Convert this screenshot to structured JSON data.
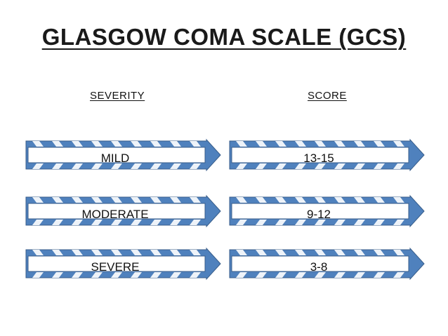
{
  "title": "GLASGOW COMA SCALE (GCS)",
  "headers": {
    "severity": "SEVERITY",
    "score": "SCORE"
  },
  "rows": [
    {
      "severity": "MILD",
      "score": "13-15"
    },
    {
      "severity": "MODERATE",
      "score": "9-12"
    },
    {
      "severity": "SEVERE",
      "score": "3-8"
    }
  ],
  "colors": {
    "arrow_fill": "#4f81bd",
    "arrow_stroke": "#385d8a",
    "box_fill": "#ffffff"
  }
}
